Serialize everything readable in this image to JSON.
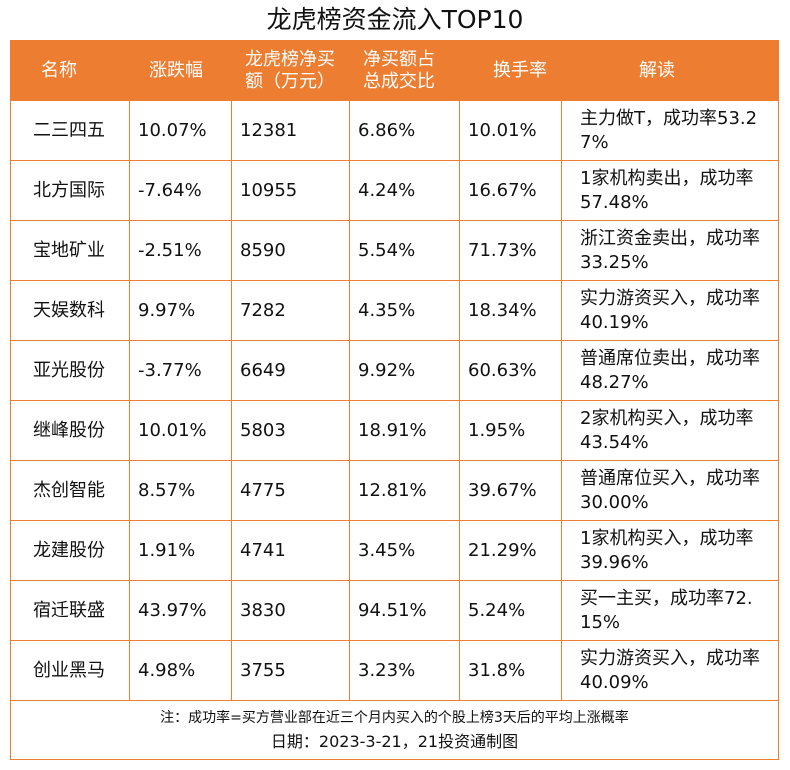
{
  "chart_data": {
    "type": "table",
    "title": "龙虎榜资金流入TOP10",
    "columns": [
      "名称",
      "涨跌幅",
      "龙虎榜净买额（万元）",
      "净买额占总成交比",
      "换手率",
      "解读"
    ],
    "header_lines": [
      [
        "名称"
      ],
      [
        "涨跌幅"
      ],
      [
        "龙虎榜净买",
        "额（万元）"
      ],
      [
        "净买额占",
        "总成交比"
      ],
      [
        "换手率"
      ],
      [
        "解读"
      ]
    ],
    "rows": [
      [
        "二三四五",
        "10.07%",
        "12381",
        "6.86%",
        "10.01%",
        "主力做T，成功率53.27%"
      ],
      [
        "北方国际",
        "-7.64%",
        "10955",
        "4.24%",
        "16.67%",
        "1家机构卖出，成功率57.48%"
      ],
      [
        "宝地矿业",
        "-2.51%",
        "8590",
        "5.54%",
        "71.73%",
        "浙江资金卖出，成功率33.25%"
      ],
      [
        "天娱数科",
        "9.97%",
        "7282",
        "4.35%",
        "18.34%",
        "实力游资买入，成功率40.19%"
      ],
      [
        "亚光股份",
        "-3.77%",
        "6649",
        "9.92%",
        "60.63%",
        "普通席位卖出，成功率48.27%"
      ],
      [
        "继峰股份",
        "10.01%",
        "5803",
        "18.91%",
        "1.95%",
        "2家机构买入，成功率43.54%"
      ],
      [
        "杰创智能",
        "8.57%",
        "4775",
        "12.81%",
        "39.67%",
        "普通席位买入，成功率30.00%"
      ],
      [
        "龙建股份",
        "1.91%",
        "4741",
        "3.45%",
        "21.29%",
        "1家机构买入，成功率39.96%"
      ],
      [
        "宿迁联盛",
        "43.97%",
        "3830",
        "94.51%",
        "5.24%",
        "买一主买，成功率72.15%"
      ],
      [
        "创业黑马",
        "4.98%",
        "3755",
        "3.23%",
        "31.8%",
        "实力游资买入，成功率40.09%"
      ]
    ],
    "note": "注：成功率=买方营业部在近三个月内买入的个股上榜3天后的平均上涨概率",
    "date_line": "日期：2023-3-21，21投资通制图"
  },
  "colors": {
    "accent": "#ed7d31",
    "header_text": "#ffffff",
    "body_text": "#111111"
  }
}
